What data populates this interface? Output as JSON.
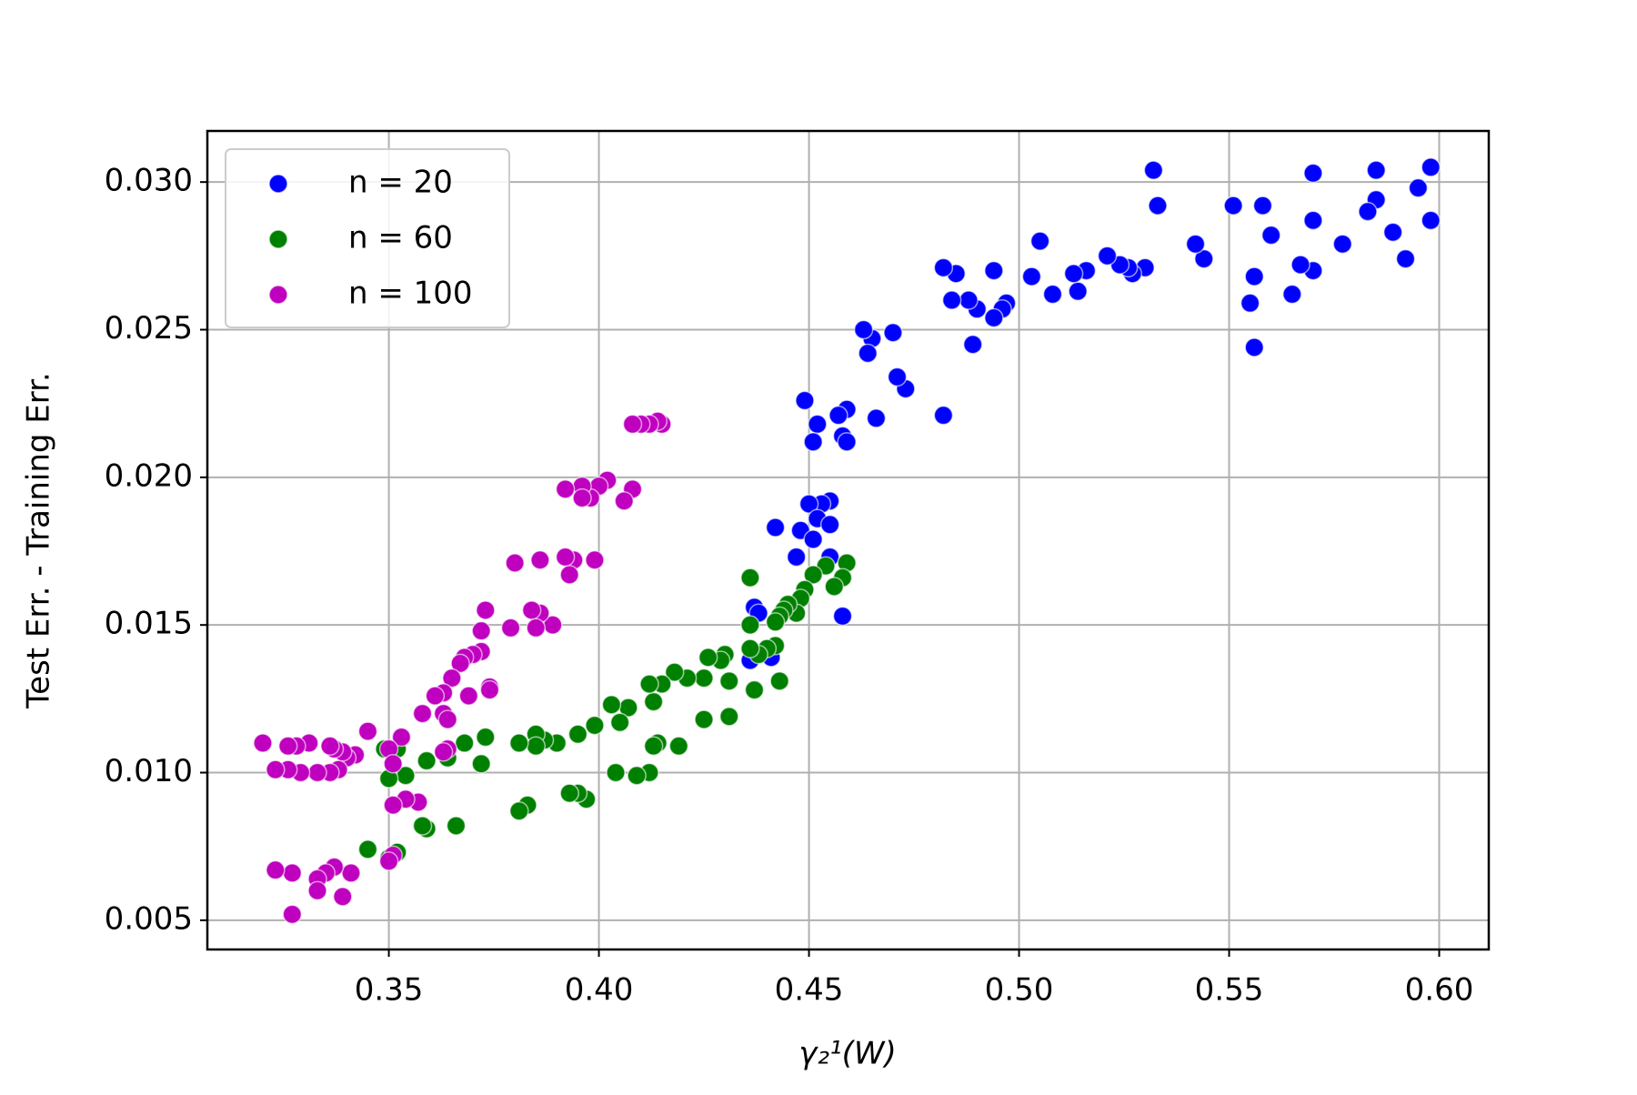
{
  "chart_data": {
    "type": "scatter",
    "xlabel": "γ₂¹(W)",
    "ylabel": "Test Err. - Training Err.",
    "xlim": [
      0.3068,
      0.6118
    ],
    "ylim": [
      0.00401,
      0.03173
    ],
    "xticks": [
      0.35,
      {
        "value": 0.4,
        "label": "0.40"
      },
      0.45,
      {
        "value": 0.5,
        "label": "0.50"
      },
      0.55,
      {
        "value": 0.6,
        "label": "0.60"
      }
    ],
    "yticks": [
      0.005,
      {
        "value": 0.01,
        "label": "0.010"
      },
      0.015,
      {
        "value": 0.02,
        "label": "0.020"
      },
      0.025,
      {
        "value": 0.03,
        "label": "0.030"
      }
    ],
    "grid": true,
    "legend": "upper left",
    "series": [
      {
        "name": "n = 20",
        "color": "#0000ff",
        "x": [
          0.598,
          0.598,
          0.595,
          0.592,
          0.589,
          0.585,
          0.585,
          0.583,
          0.577,
          0.57,
          0.57,
          0.57,
          0.567,
          0.565,
          0.56,
          0.558,
          0.551,
          0.556,
          0.555,
          0.556,
          0.544,
          0.542,
          0.533,
          0.532,
          0.53,
          0.527,
          0.526,
          0.524,
          0.521,
          0.516,
          0.514,
          0.513,
          0.508,
          0.505,
          0.503,
          0.497,
          0.496,
          0.494,
          0.494,
          0.49,
          0.488,
          0.489,
          0.485,
          0.484,
          0.482,
          0.482,
          0.473,
          0.471,
          0.47,
          0.466,
          0.465,
          0.463,
          0.464,
          0.459,
          0.457,
          0.458,
          0.459,
          0.449,
          0.452,
          0.451,
          0.455,
          0.453,
          0.45,
          0.452,
          0.455,
          0.448,
          0.442,
          0.451,
          0.447,
          0.455,
          0.458,
          0.437,
          0.436,
          0.441,
          0.438
        ],
        "values": [
          0.0305,
          0.0287,
          0.0298,
          0.0274,
          0.0283,
          0.0304,
          0.0294,
          0.029,
          0.0279,
          0.0303,
          0.0287,
          0.027,
          0.0272,
          0.0262,
          0.0282,
          0.0292,
          0.0292,
          0.0268,
          0.0259,
          0.0244,
          0.0274,
          0.0279,
          0.0292,
          0.0304,
          0.0271,
          0.0269,
          0.0271,
          0.0272,
          0.0275,
          0.027,
          0.0263,
          0.0269,
          0.0262,
          0.028,
          0.0268,
          0.0259,
          0.0257,
          0.0254,
          0.027,
          0.0257,
          0.026,
          0.0245,
          0.0269,
          0.026,
          0.0271,
          0.0221,
          0.023,
          0.0234,
          0.0249,
          0.022,
          0.0247,
          0.025,
          0.0242,
          0.0223,
          0.0221,
          0.0214,
          0.0212,
          0.0226,
          0.0218,
          0.0212,
          0.0192,
          0.0191,
          0.0191,
          0.0186,
          0.0184,
          0.0182,
          0.0183,
          0.0179,
          0.0173,
          0.0173,
          0.0153,
          0.0156,
          0.0138,
          0.0139,
          0.0154
        ]
      },
      {
        "name": "n = 60",
        "color": "#008000",
        "x": [
          0.459,
          0.458,
          0.456,
          0.454,
          0.451,
          0.449,
          0.448,
          0.447,
          0.445,
          0.444,
          0.443,
          0.442,
          0.442,
          0.44,
          0.438,
          0.436,
          0.436,
          0.436,
          0.443,
          0.437,
          0.431,
          0.43,
          0.429,
          0.426,
          0.425,
          0.421,
          0.431,
          0.425,
          0.419,
          0.418,
          0.415,
          0.413,
          0.412,
          0.414,
          0.413,
          0.412,
          0.409,
          0.404,
          0.407,
          0.405,
          0.403,
          0.399,
          0.395,
          0.397,
          0.395,
          0.393,
          0.39,
          0.387,
          0.385,
          0.385,
          0.381,
          0.383,
          0.381,
          0.373,
          0.368,
          0.372,
          0.366,
          0.364,
          0.359,
          0.359,
          0.358,
          0.354,
          0.352,
          0.349,
          0.35,
          0.352,
          0.345,
          0.35
        ],
        "values": [
          0.0171,
          0.0166,
          0.0163,
          0.017,
          0.0167,
          0.0162,
          0.0159,
          0.0154,
          0.0157,
          0.0155,
          0.0153,
          0.0151,
          0.0143,
          0.0142,
          0.014,
          0.0142,
          0.015,
          0.0166,
          0.0131,
          0.0128,
          0.0131,
          0.014,
          0.0138,
          0.0139,
          0.0132,
          0.0132,
          0.0119,
          0.0118,
          0.0109,
          0.0134,
          0.013,
          0.0124,
          0.013,
          0.011,
          0.0109,
          0.01,
          0.0099,
          0.01,
          0.0122,
          0.0117,
          0.0123,
          0.0116,
          0.0113,
          0.0091,
          0.0093,
          0.0093,
          0.011,
          0.0111,
          0.0113,
          0.0109,
          0.011,
          0.0089,
          0.0087,
          0.0112,
          0.011,
          0.0103,
          0.0082,
          0.0105,
          0.0104,
          0.0081,
          0.0082,
          0.0099,
          0.0108,
          0.0108,
          0.0098,
          0.0073,
          0.0074,
          0.0071
        ]
      },
      {
        "name": "n = 100",
        "color": "#bf00bf",
        "x": [
          0.415,
          0.414,
          0.412,
          0.41,
          0.408,
          0.408,
          0.406,
          0.402,
          0.4,
          0.398,
          0.396,
          0.396,
          0.392,
          0.399,
          0.394,
          0.392,
          0.393,
          0.386,
          0.38,
          0.389,
          0.386,
          0.384,
          0.385,
          0.379,
          0.373,
          0.372,
          0.372,
          0.37,
          0.368,
          0.367,
          0.374,
          0.374,
          0.369,
          0.365,
          0.363,
          0.361,
          0.363,
          0.364,
          0.358,
          0.364,
          0.363,
          0.353,
          0.35,
          0.351,
          0.345,
          0.342,
          0.34,
          0.339,
          0.337,
          0.336,
          0.331,
          0.328,
          0.326,
          0.32,
          0.338,
          0.336,
          0.333,
          0.329,
          0.326,
          0.323,
          0.357,
          0.354,
          0.351,
          0.351,
          0.35,
          0.341,
          0.337,
          0.335,
          0.333,
          0.333,
          0.339,
          0.327,
          0.323,
          0.327
        ],
        "values": [
          0.0218,
          0.0219,
          0.0218,
          0.0218,
          0.0218,
          0.0196,
          0.0192,
          0.0199,
          0.0197,
          0.0193,
          0.0197,
          0.0193,
          0.0196,
          0.0172,
          0.0172,
          0.0173,
          0.0167,
          0.0172,
          0.0171,
          0.015,
          0.0154,
          0.0155,
          0.0149,
          0.0149,
          0.0155,
          0.0148,
          0.0141,
          0.014,
          0.0139,
          0.0137,
          0.0129,
          0.0128,
          0.0126,
          0.0132,
          0.0127,
          0.0126,
          0.012,
          0.0118,
          0.012,
          0.0108,
          0.0107,
          0.0112,
          0.0108,
          0.0103,
          0.0114,
          0.0106,
          0.0105,
          0.0107,
          0.0108,
          0.0109,
          0.011,
          0.0109,
          0.0109,
          0.011,
          0.0101,
          0.01,
          0.01,
          0.01,
          0.0101,
          0.0101,
          0.009,
          0.0091,
          0.0089,
          0.0072,
          0.007,
          0.0066,
          0.0068,
          0.0066,
          0.0064,
          0.006,
          0.0058,
          0.0066,
          0.0067,
          0.0052
        ]
      }
    ]
  }
}
